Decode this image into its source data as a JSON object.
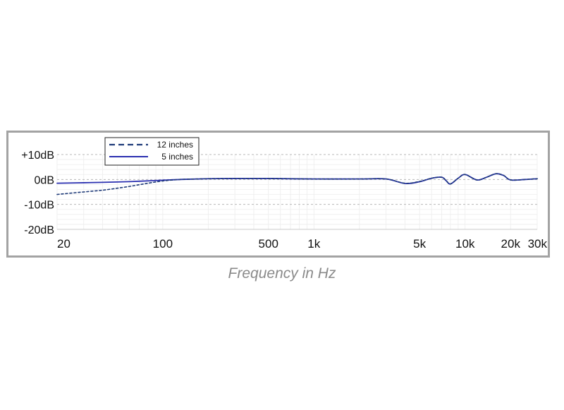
{
  "chart_data": {
    "type": "line",
    "title": "",
    "xlabel": "Frequency in Hz",
    "ylabel": "",
    "x_scale": "log",
    "xlim": [
      20,
      30000
    ],
    "ylim": [
      -20,
      10
    ],
    "grid": true,
    "legend_position": "top-left",
    "x_ticks": [
      {
        "value": 20,
        "label": "20"
      },
      {
        "value": 100,
        "label": "100"
      },
      {
        "value": 500,
        "label": "500"
      },
      {
        "value": 1000,
        "label": "1k"
      },
      {
        "value": 5000,
        "label": "5k"
      },
      {
        "value": 10000,
        "label": "10k"
      },
      {
        "value": 20000,
        "label": "20k"
      },
      {
        "value": 30000,
        "label": "30k"
      }
    ],
    "y_ticks": [
      {
        "value": 10,
        "label": "+10dB"
      },
      {
        "value": 0,
        "label": "0dB"
      },
      {
        "value": -10,
        "label": "-10dB"
      },
      {
        "value": -20,
        "label": "-20dB"
      }
    ],
    "series": [
      {
        "name": "12 inches",
        "style": "dashed",
        "color": "#1e3a78",
        "x": [
          20,
          30,
          40,
          50,
          60,
          70,
          80,
          100,
          130,
          170,
          200,
          300,
          500,
          1000,
          2000,
          3000,
          4000,
          5000,
          6000,
          7000,
          7500,
          8000,
          9000,
          10000,
          12000,
          14000,
          16000,
          18000,
          20000,
          25000,
          30000
        ],
        "y": [
          -6,
          -5,
          -4.3,
          -3.5,
          -2.8,
          -2.1,
          -1.5,
          -0.6,
          0,
          0.2,
          0.3,
          0.4,
          0.4,
          0.2,
          0.2,
          0.2,
          -1.5,
          -0.8,
          0.5,
          0.9,
          -0.5,
          -1.8,
          0.5,
          2.0,
          -0.2,
          1.0,
          2.3,
          1.6,
          -0.2,
          0,
          0.3
        ]
      },
      {
        "name": "5 inches",
        "style": "solid",
        "color": "#2a2fb0",
        "x": [
          20,
          30,
          50,
          70,
          100,
          130,
          170,
          200,
          300,
          500,
          1000,
          2000,
          3000,
          4000,
          5000,
          6000,
          7000,
          7500,
          8000,
          9000,
          10000,
          12000,
          14000,
          16000,
          18000,
          20000,
          25000,
          30000
        ],
        "y": [
          -1.5,
          -1.3,
          -1.0,
          -0.7,
          -0.3,
          0,
          0.2,
          0.3,
          0.4,
          0.4,
          0.2,
          0.2,
          0.2,
          -1.6,
          -0.9,
          0.5,
          0.9,
          -0.5,
          -1.8,
          0.5,
          2.0,
          -0.2,
          1.0,
          2.3,
          1.6,
          -0.2,
          0,
          0.3
        ]
      }
    ]
  },
  "colors": {
    "frame_border": "#a3a3a3",
    "grid": "#d5d5d5",
    "caption": "#8a8a8a"
  }
}
